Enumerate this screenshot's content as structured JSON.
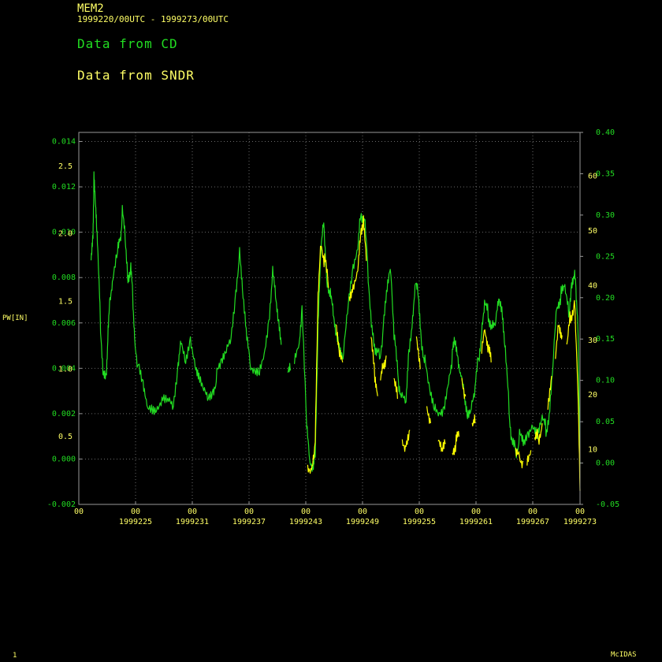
{
  "header": {
    "station": "MEM2",
    "range": "1999220/00UTC - 1999273/00UTC",
    "legend_cd": "Data from CD",
    "legend_sndr": "Data from SNDR"
  },
  "footer": {
    "page": "1",
    "brand": "McIDAS"
  },
  "colors": {
    "cd": "#22dd22",
    "sndr": "#ffff00",
    "axis": "#999999",
    "grid": "#6a6a6a",
    "label": "#ffff66"
  },
  "chart_data": {
    "type": "line",
    "ylabel": "PW[IN]",
    "grid": true,
    "xlim": [
      0,
      53
    ],
    "x_ticks": [
      {
        "x": 0,
        "hour": "00",
        "day": ""
      },
      {
        "x": 6,
        "hour": "00",
        "day": "1999225"
      },
      {
        "x": 12,
        "hour": "00",
        "day": "1999231"
      },
      {
        "x": 18,
        "hour": "00",
        "day": "1999237"
      },
      {
        "x": 24,
        "hour": "00",
        "day": "1999243"
      },
      {
        "x": 30,
        "hour": "00",
        "day": "1999249"
      },
      {
        "x": 36,
        "hour": "00",
        "day": "1999255"
      },
      {
        "x": 42,
        "hour": "00",
        "day": "1999261"
      },
      {
        "x": 48,
        "hour": "00",
        "day": "1999267"
      },
      {
        "x": 53,
        "hour": "00",
        "day": "1999273"
      }
    ],
    "y_pw": {
      "ylim": [
        0.0,
        2.75
      ],
      "ticks": [
        0.5,
        1.0,
        1.5,
        2.0,
        2.5
      ],
      "labels": [
        "0.5",
        "1.0",
        "1.5",
        "2.0",
        "2.5"
      ]
    },
    "y_left_inner": {
      "ylim": [
        -0.002,
        0.0144
      ],
      "ticks": [
        -0.002,
        0.0,
        0.002,
        0.004,
        0.006,
        0.008,
        0.01,
        0.012,
        0.014
      ],
      "labels": [
        "-0.002",
        "0.000",
        "0.002",
        "0.004",
        "0.006",
        "0.008",
        "0.010",
        "0.012",
        "0.014"
      ]
    },
    "y_right_inner": {
      "ylim": [
        0,
        68
      ],
      "ticks": [
        10,
        20,
        30,
        40,
        50,
        60
      ],
      "labels": [
        "10",
        "20",
        "30",
        "40",
        "50",
        "60"
      ]
    },
    "y_right_outer": {
      "ylim": [
        -0.05,
        0.4
      ],
      "ticks": [
        -0.05,
        0.0,
        0.05,
        0.1,
        0.15,
        0.2,
        0.25,
        0.3,
        0.35,
        0.4
      ],
      "labels": [
        "-0.05",
        "0.00",
        "0.05",
        "0.10",
        "0.15",
        "0.20",
        "0.25",
        "0.30",
        "0.35",
        "0.40"
      ]
    },
    "series": [
      {
        "name": "Data from CD",
        "segments": [
          [
            [
              1.3,
              1.85
            ],
            [
              1.5,
              2.02
            ],
            [
              1.6,
              2.42
            ],
            [
              1.75,
              2.2
            ],
            [
              1.9,
              2.0
            ],
            [
              2.1,
              1.7
            ],
            [
              2.3,
              1.3
            ],
            [
              2.6,
              0.93
            ],
            [
              2.9,
              0.9
            ],
            [
              3.1,
              1.25
            ],
            [
              3.3,
              1.5
            ],
            [
              3.6,
              1.62
            ],
            [
              4.1,
              1.85
            ],
            [
              4.4,
              1.95
            ],
            [
              4.6,
              2.15
            ],
            [
              4.9,
              1.98
            ],
            [
              5.2,
              1.7
            ],
            [
              5.5,
              1.75
            ],
            [
              5.7,
              1.55
            ],
            [
              5.9,
              1.25
            ],
            [
              6.3,
              1.0
            ],
            [
              6.8,
              0.85
            ],
            [
              7.2,
              0.72
            ],
            [
              7.8,
              0.68
            ],
            [
              8.3,
              0.7
            ],
            [
              8.9,
              0.8
            ],
            [
              9.5,
              0.76
            ],
            [
              10.0,
              0.72
            ],
            [
              10.5,
              1.02
            ],
            [
              10.8,
              1.25
            ],
            [
              11.3,
              1.1
            ],
            [
              11.8,
              1.25
            ],
            [
              12.3,
              1.05
            ],
            [
              12.7,
              0.95
            ],
            [
              13.2,
              0.88
            ],
            [
              13.7,
              0.82
            ],
            [
              14.2,
              0.86
            ],
            [
              14.6,
              0.95
            ],
            [
              15.1,
              1.02
            ],
            [
              15.6,
              1.12
            ],
            [
              16.1,
              1.22
            ],
            [
              16.6,
              1.55
            ],
            [
              17.0,
              1.85
            ],
            [
              17.3,
              1.55
            ],
            [
              17.7,
              1.28
            ],
            [
              18.1,
              1.05
            ],
            [
              18.6,
              1.02
            ],
            [
              19.1,
              1.03
            ],
            [
              19.6,
              1.15
            ],
            [
              20.1,
              1.38
            ],
            [
              20.5,
              1.72
            ],
            [
              20.8,
              1.58
            ],
            [
              21.1,
              1.4
            ],
            [
              21.4,
              1.18
            ]
          ],
          [
            [
              22.1,
              0.98
            ],
            [
              22.4,
              1.0
            ]
          ],
          [
            [
              22.8,
              1.1
            ],
            [
              23.3,
              1.2
            ],
            [
              23.6,
              1.42
            ],
            [
              24.1,
              0.55
            ],
            [
              24.4,
              0.3
            ],
            [
              24.8,
              0.25
            ],
            [
              25.0,
              0.4
            ],
            [
              25.3,
              1.3
            ],
            [
              25.6,
              1.85
            ],
            [
              25.9,
              2.1
            ],
            [
              26.2,
              1.7
            ],
            [
              26.6,
              1.55
            ],
            [
              26.9,
              1.45
            ],
            [
              27.2,
              1.3
            ],
            [
              27.6,
              1.15
            ],
            [
              28.0,
              1.1
            ],
            [
              28.5,
              1.45
            ],
            [
              29.0,
              1.7
            ],
            [
              29.5,
              1.85
            ],
            [
              29.8,
              2.15
            ],
            [
              30.2,
              2.1
            ],
            [
              30.6,
              1.7
            ],
            [
              31.0,
              1.3
            ],
            [
              31.4,
              1.1
            ],
            [
              31.8,
              1.1
            ],
            [
              32.2,
              1.3
            ],
            [
              32.6,
              1.6
            ],
            [
              33.0,
              1.75
            ],
            [
              33.4,
              1.2
            ],
            [
              33.8,
              0.9
            ],
            [
              34.1,
              0.78
            ],
            [
              34.6,
              0.72
            ],
            [
              34.9,
              1.1
            ],
            [
              35.3,
              1.35
            ],
            [
              35.6,
              1.6
            ],
            [
              35.9,
              1.55
            ],
            [
              36.2,
              1.25
            ],
            [
              36.6,
              1.05
            ],
            [
              37.1,
              0.83
            ],
            [
              37.6,
              0.72
            ],
            [
              38.1,
              0.68
            ],
            [
              38.6,
              0.72
            ],
            [
              39.1,
              0.95
            ],
            [
              39.5,
              1.1
            ],
            [
              39.8,
              1.2
            ],
            [
              40.1,
              1.1
            ],
            [
              40.4,
              0.98
            ],
            [
              40.8,
              0.8
            ],
            [
              41.1,
              0.7
            ],
            [
              41.5,
              0.72
            ],
            [
              41.9,
              0.85
            ],
            [
              42.3,
              1.1
            ],
            [
              42.6,
              1.3
            ],
            [
              42.9,
              1.45
            ],
            [
              43.3,
              1.4
            ],
            [
              43.7,
              1.32
            ],
            [
              44.1,
              1.35
            ],
            [
              44.4,
              1.48
            ],
            [
              44.8,
              1.4
            ],
            [
              45.1,
              1.1
            ],
            [
              45.5,
              0.7
            ],
            [
              45.8,
              0.45
            ],
            [
              46.2,
              0.4
            ],
            [
              46.6,
              0.5
            ],
            [
              47.0,
              0.45
            ],
            [
              47.5,
              0.5
            ],
            [
              48.0,
              0.55
            ],
            [
              48.5,
              0.48
            ],
            [
              49.0,
              0.6
            ],
            [
              49.4,
              0.55
            ],
            [
              49.8,
              0.7
            ],
            [
              50.2,
              1.1
            ],
            [
              50.6,
              1.5
            ],
            [
              51.0,
              1.55
            ],
            [
              51.4,
              1.6
            ],
            [
              51.8,
              1.42
            ],
            [
              52.1,
              1.65
            ],
            [
              52.4,
              1.7
            ],
            [
              52.6,
              1.55
            ],
            [
              52.8,
              1.3
            ],
            [
              53.0,
              0.3
            ]
          ]
        ]
      },
      {
        "name": "Data from SNDR",
        "segments": [
          [
            [
              24.2,
              0.3
            ],
            [
              24.6,
              0.25
            ],
            [
              25.0,
              0.45
            ],
            [
              25.3,
              1.5
            ],
            [
              25.6,
              1.95
            ],
            [
              26.0,
              1.8
            ],
            [
              26.4,
              1.6
            ]
          ],
          [
            [
              27.2,
              1.3
            ],
            [
              27.5,
              1.1
            ],
            [
              27.9,
              1.05
            ]
          ],
          [
            [
              28.6,
              1.55
            ],
            [
              29.0,
              1.6
            ],
            [
              29.5,
              1.75
            ],
            [
              29.8,
              2.05
            ],
            [
              30.1,
              2.1
            ],
            [
              30.4,
              1.8
            ]
          ],
          [
            [
              30.9,
              1.2
            ],
            [
              31.3,
              0.95
            ],
            [
              31.6,
              0.8
            ]
          ],
          [
            [
              31.9,
              0.9
            ],
            [
              32.2,
              1.05
            ],
            [
              32.5,
              1.1
            ]
          ],
          [
            [
              33.3,
              0.9
            ],
            [
              33.7,
              0.78
            ]
          ],
          [
            [
              34.2,
              0.5
            ],
            [
              34.6,
              0.42
            ],
            [
              35.0,
              0.55
            ]
          ],
          [
            [
              35.7,
              1.25
            ],
            [
              36.1,
              1.0
            ]
          ],
          [
            [
              36.8,
              0.7
            ],
            [
              37.2,
              0.6
            ]
          ],
          [
            [
              38.0,
              0.45
            ],
            [
              38.4,
              0.4
            ],
            [
              38.8,
              0.45
            ]
          ],
          [
            [
              39.5,
              0.38
            ],
            [
              39.9,
              0.45
            ],
            [
              40.2,
              0.5
            ]
          ],
          [
            [
              40.5,
              0.95
            ],
            [
              40.9,
              0.8
            ]
          ],
          [
            [
              41.6,
              0.55
            ],
            [
              41.9,
              0.6
            ]
          ],
          [
            [
              42.6,
              1.1
            ],
            [
              43.0,
              1.3
            ],
            [
              43.3,
              1.15
            ],
            [
              43.6,
              1.05
            ]
          ],
          [
            [
              46.2,
              0.4
            ],
            [
              46.6,
              0.36
            ],
            [
              47.0,
              0.32
            ]
          ],
          [
            [
              47.4,
              0.35
            ],
            [
              47.8,
              0.4
            ]
          ],
          [
            [
              48.2,
              0.45
            ],
            [
              48.6,
              0.5
            ],
            [
              49.0,
              0.6
            ]
          ],
          [
            [
              49.6,
              0.75
            ],
            [
              50.0,
              0.95
            ]
          ],
          [
            [
              50.4,
              1.05
            ],
            [
              50.8,
              1.35
            ],
            [
              51.1,
              1.25
            ]
          ],
          [
            [
              51.6,
              1.15
            ],
            [
              52.0,
              1.4
            ],
            [
              52.4,
              1.5
            ],
            [
              52.8,
              0.8
            ],
            [
              53.0,
              0.1
            ]
          ]
        ]
      }
    ]
  }
}
